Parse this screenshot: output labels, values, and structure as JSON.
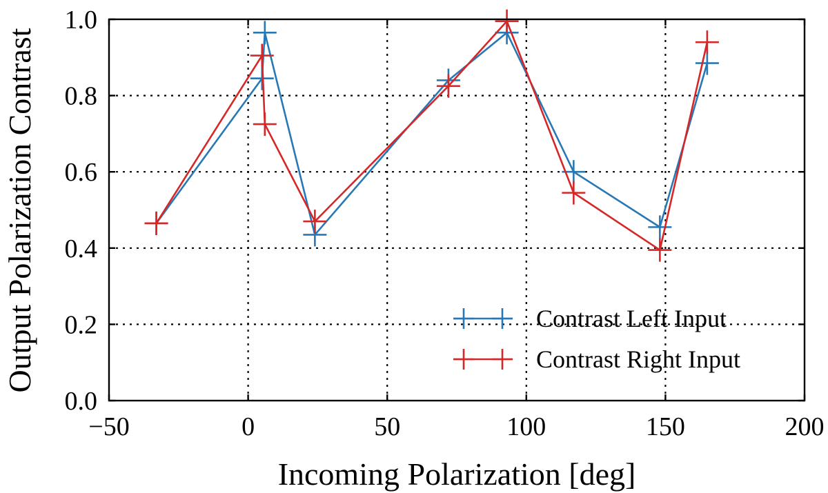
{
  "chart_data": {
    "type": "line",
    "title": "",
    "xlabel": "Incoming Polarization [deg]",
    "ylabel": "Output Polarization Contrast",
    "xlim": [
      -50,
      200
    ],
    "ylim": [
      0.0,
      1.0
    ],
    "x_ticks": [
      -50,
      0,
      50,
      100,
      150,
      200
    ],
    "x_tick_labels": [
      "−50",
      "0",
      "50",
      "100",
      "150",
      "200"
    ],
    "y_ticks": [
      0.0,
      0.2,
      0.4,
      0.6,
      0.8,
      1.0
    ],
    "y_tick_labels": [
      "0.0",
      "0.2",
      "0.4",
      "0.6",
      "0.8",
      "1.0"
    ],
    "grid": true,
    "legend_position": "bottom-right",
    "series": [
      {
        "name": "Contrast Left Input",
        "color": "#2878b5",
        "marker": "plus",
        "x": [
          -33,
          5,
          6,
          24,
          72,
          93,
          117,
          148,
          165
        ],
        "y": [
          0.465,
          0.845,
          0.965,
          0.435,
          0.84,
          0.965,
          0.6,
          0.455,
          0.885
        ]
      },
      {
        "name": "Contrast Right Input",
        "color": "#d62728",
        "marker": "plus",
        "x": [
          -33,
          5,
          6,
          24,
          72,
          93,
          117,
          148,
          165
        ],
        "y": [
          0.465,
          0.905,
          0.725,
          0.47,
          0.825,
          0.995,
          0.545,
          0.395,
          0.94
        ]
      }
    ]
  }
}
